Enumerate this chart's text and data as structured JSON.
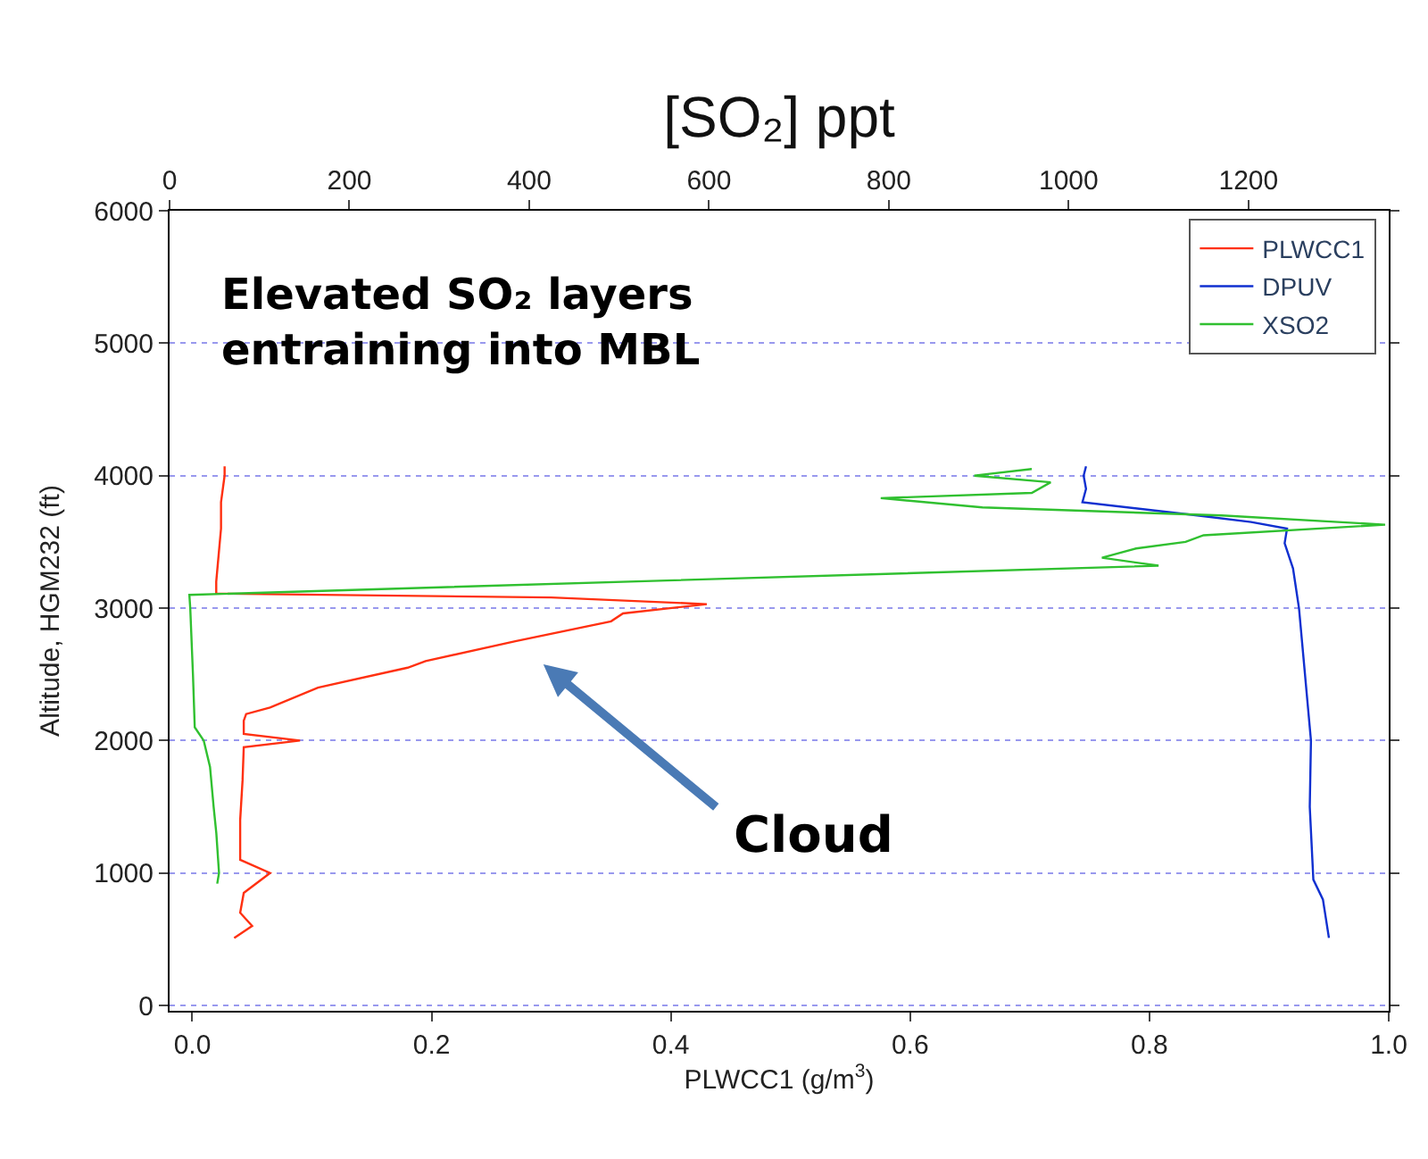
{
  "chart_data": {
    "type": "line",
    "x2label": "[SO₂] ppt",
    "xlabel": "PLWCC1 (g/m$^{3}$)",
    "ylabel": "Altitude, HGM232 (ft)",
    "annotations": [
      "Elevated SO₂ layers\nentraining into MBL",
      "Cloud"
    ],
    "series": [
      {
        "name": "PLWCC1",
        "color": "#ff3010",
        "x": [
          0.035,
          0.05,
          0.04,
          0.043,
          0.065,
          0.04,
          0.04,
          0.042,
          0.043,
          0.09,
          0.043,
          0.043,
          0.045,
          0.065,
          0.105,
          0.18,
          0.195,
          0.27,
          0.35,
          0.36,
          0.43,
          0.3,
          0.02,
          0.02,
          0.022,
          0.024,
          0.024,
          0.027,
          0.027
        ],
        "values": [
          510,
          600,
          700,
          850,
          1000,
          1100,
          1400,
          1700,
          1950,
          2000,
          2050,
          2150,
          2200,
          2250,
          2400,
          2550,
          2600,
          2750,
          2900,
          2960,
          3030,
          3080,
          3110,
          3200,
          3400,
          3600,
          3800,
          4000,
          4070
        ]
      },
      {
        "name": "DPUV",
        "color": "#1030d0",
        "x": [
          0.95,
          0.945,
          0.937,
          0.934,
          0.935,
          0.93,
          0.925,
          0.92,
          0.913,
          0.915,
          0.885,
          0.84,
          0.744,
          0.747,
          0.745,
          0.747
        ],
        "values": [
          510,
          800,
          950,
          1500,
          2000,
          2500,
          3000,
          3300,
          3490,
          3600,
          3650,
          3700,
          3800,
          3900,
          4000,
          4070
        ]
      },
      {
        "name": "XSO2",
        "color": "#30c030",
        "axis": "x2",
        "x": [
          53,
          55,
          52,
          49,
          45,
          38,
          28,
          26,
          23,
          22,
          1100,
          1037,
          1075,
          1130,
          1150,
          1352,
          1170,
          904,
          791,
          959,
          980,
          895,
          959
        ],
        "values": [
          920,
          1000,
          1300,
          1500,
          1800,
          2000,
          2100,
          2500,
          3000,
          3100,
          3320,
          3380,
          3450,
          3500,
          3550,
          3630,
          3700,
          3760,
          3830,
          3870,
          3950,
          4000,
          4050
        ]
      }
    ],
    "xlim": [
      -0.019,
      1.0
    ],
    "xticks": [
      {
        "value": 0,
        "label": "0.0"
      },
      0.2,
      0.4,
      0.6,
      0.8,
      {
        "value": 1,
        "label": "1.0"
      }
    ],
    "x2lim": [
      0,
      1356
    ],
    "x2ticks": [
      0,
      200,
      400,
      600,
      800,
      1000,
      1200
    ],
    "ylim": [
      -40,
      6000
    ],
    "yticks": [
      0,
      1000,
      2000,
      3000,
      4000,
      5000,
      6000
    ],
    "grid": "y",
    "legend": "top right",
    "line_style": "solid",
    "marker": "none"
  }
}
